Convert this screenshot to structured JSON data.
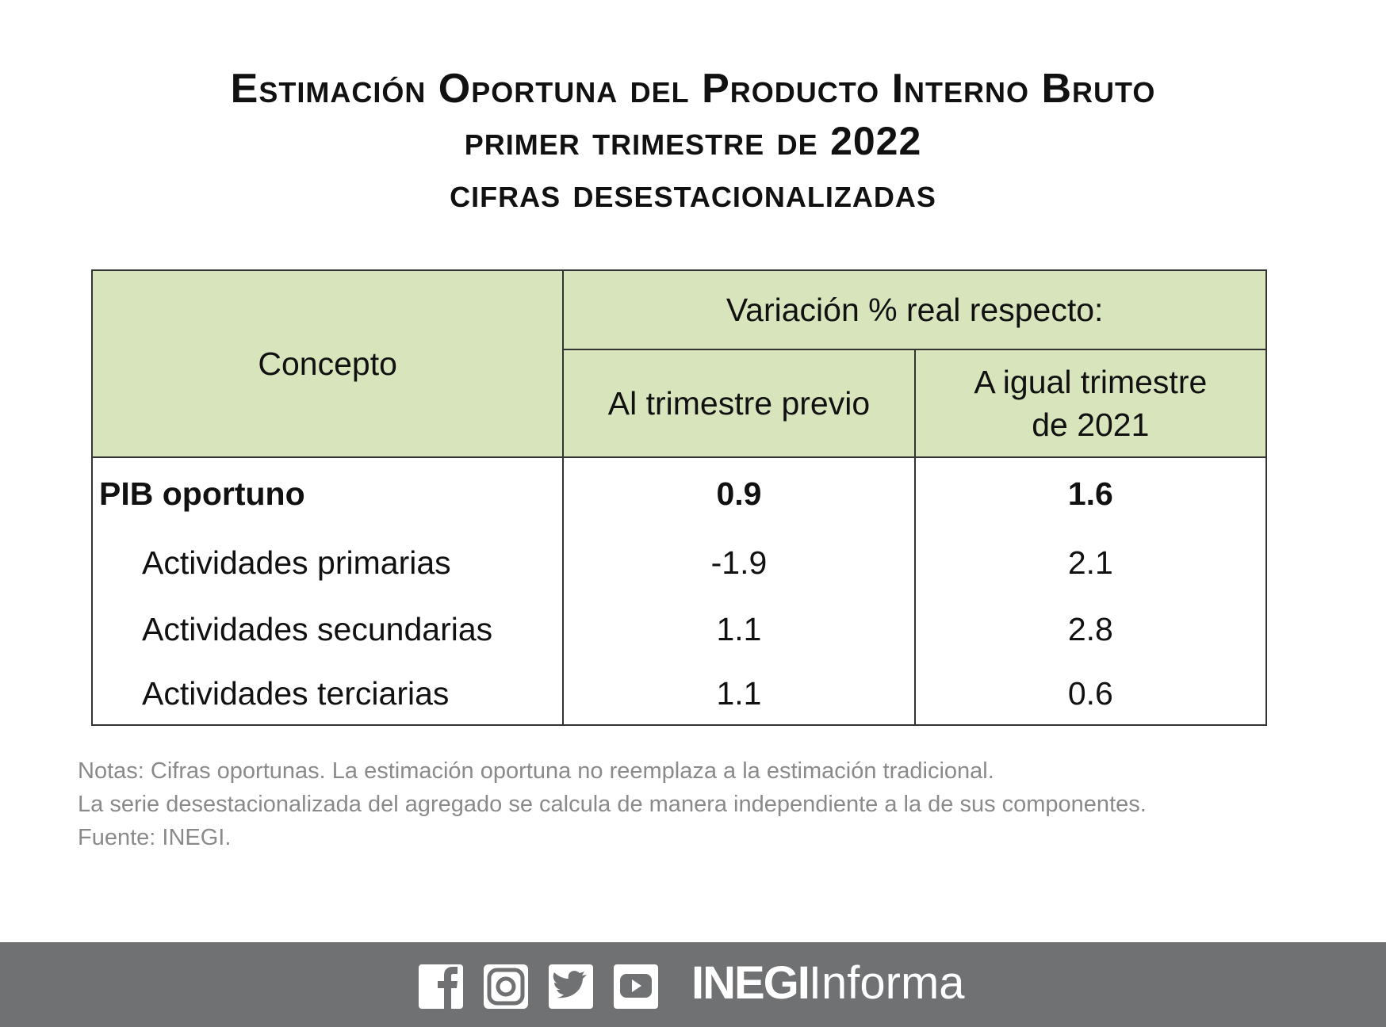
{
  "title": {
    "line1": "Estimación Oportuna del Producto Interno Bruto",
    "line2": "primer trimestre de",
    "line2_year": "2022",
    "line3": "cifras desestacionalizadas"
  },
  "table": {
    "header": {
      "concept": "Concepto",
      "group": "Variación % real respecto:",
      "col1": "Al trimestre previo",
      "col2_line1": "A igual trimestre",
      "col2_line2": "de 2021"
    },
    "rows": [
      [
        "PIB oportuno",
        "0.9",
        "1.6"
      ],
      [
        "Actividades primarias",
        "-1.9",
        "2.1"
      ],
      [
        "Actividades secundarias",
        "1.1",
        "2.8"
      ],
      [
        "Actividades terciarias",
        "1.1",
        "0.6"
      ]
    ]
  },
  "notes": [
    "Notas: Cifras oportunas. La estimación oportuna no reemplaza a la estimación tradicional.",
    "La serie desestacionalizada del agregado se calcula de manera independiente a la de sus componentes.",
    "Fuente: INEGI."
  ],
  "footer": {
    "brand_bold": "INEGI",
    "brand": "Informa"
  }
}
